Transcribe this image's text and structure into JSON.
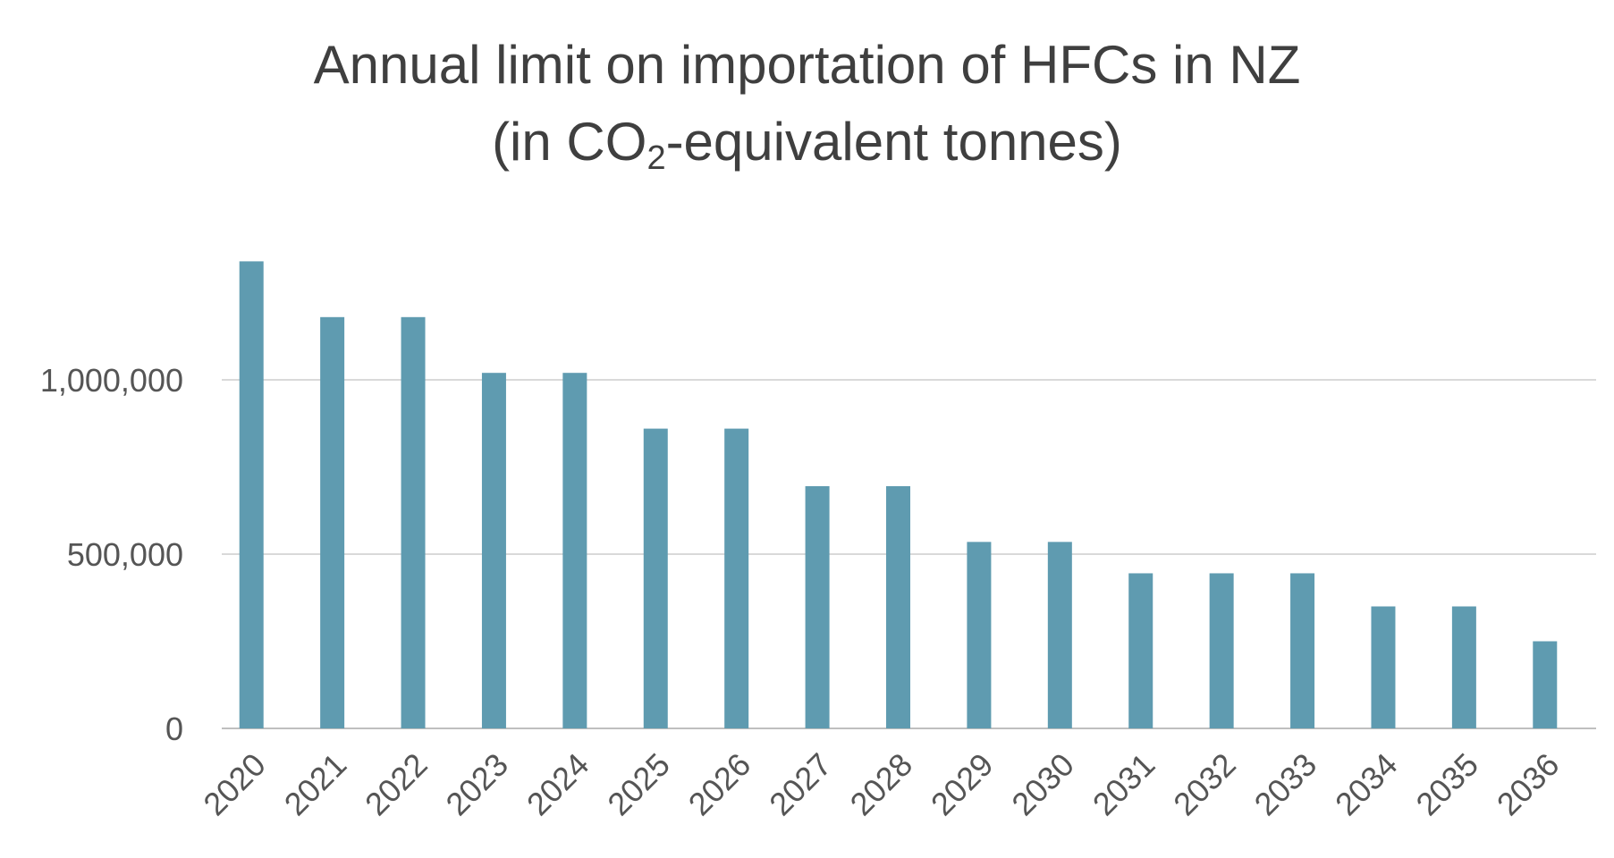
{
  "title": {
    "line1": "Annual limit on importation of HFCs in NZ",
    "line2_prefix": "(in CO",
    "line2_sub": "2",
    "line2_suffix": "-equivalent tonnes)"
  },
  "chart_data": {
    "type": "bar",
    "title": "Annual limit on importation of HFCs in NZ (in CO2-equivalent tonnes)",
    "xlabel": "",
    "ylabel": "",
    "categories": [
      "2020",
      "2021",
      "2022",
      "2023",
      "2024",
      "2025",
      "2026",
      "2027",
      "2028",
      "2029",
      "2030",
      "2031",
      "2032",
      "2033",
      "2034",
      "2035",
      "2036"
    ],
    "values": [
      1340000,
      1180000,
      1180000,
      1020000,
      1020000,
      860000,
      860000,
      695000,
      695000,
      535000,
      535000,
      445000,
      445000,
      445000,
      350000,
      350000,
      250000
    ],
    "ylim": [
      0,
      1340000
    ],
    "yticks": [
      0,
      500000,
      1000000
    ],
    "ytick_labels": [
      "0",
      "500,000",
      "1,000,000"
    ],
    "grid": true,
    "legend": "none",
    "colors": {
      "bar": "#5f9bb0",
      "grid": "#d9d9d9",
      "axis": "#bfbfbf"
    }
  }
}
